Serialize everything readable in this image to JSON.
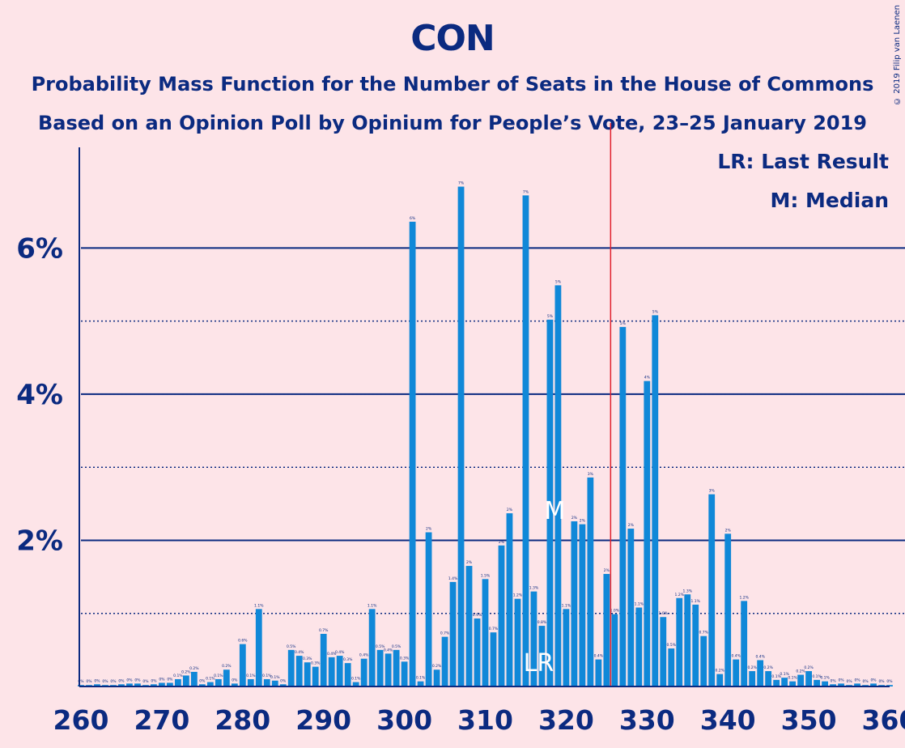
{
  "chart_data": {
    "type": "bar",
    "title": "CON",
    "subtitle": "Probability Mass Function for the Number of Seats in the House of Commons",
    "subtitle2": "Based on an Opinion Poll by Opinium for People’s Vote, 23–25 January 2019",
    "copyright": "© 2019 Filip van Laenen",
    "xlabel": "",
    "ylabel": "",
    "xlim": [
      260,
      360
    ],
    "ylim": [
      0,
      7.4
    ],
    "x_ticks": [
      "260",
      "270",
      "280",
      "290",
      "300",
      "310",
      "320",
      "330",
      "340",
      "350",
      "360"
    ],
    "y_ticks": [
      {
        "value": 2,
        "label": "2%"
      },
      {
        "value": 4,
        "label": "4%"
      },
      {
        "value": 6,
        "label": "6%"
      }
    ],
    "majority_line": 326,
    "last_result": {
      "seat": 317,
      "label": "LR"
    },
    "median": {
      "seat": 319,
      "label": "M"
    },
    "legend": [
      "LR: Last Result",
      "M: Median"
    ],
    "colors": {
      "bar": "#1088d8",
      "axis": "#0b2a80",
      "majority": "#e0202c",
      "background": "#fde4e8"
    },
    "seats": [
      260,
      261,
      262,
      263,
      264,
      265,
      266,
      267,
      268,
      269,
      270,
      271,
      272,
      273,
      274,
      275,
      276,
      277,
      278,
      279,
      280,
      281,
      282,
      283,
      284,
      285,
      286,
      287,
      288,
      289,
      290,
      291,
      292,
      293,
      294,
      295,
      296,
      297,
      298,
      299,
      300,
      301,
      302,
      303,
      304,
      305,
      306,
      307,
      308,
      309,
      310,
      311,
      312,
      313,
      314,
      315,
      316,
      317,
      318,
      319,
      320,
      321,
      322,
      323,
      324,
      325,
      326,
      327,
      328,
      329,
      330,
      331,
      332,
      333,
      334,
      335,
      336,
      337,
      338,
      339,
      340,
      341,
      342,
      343,
      344,
      345,
      346,
      347,
      348,
      349,
      350,
      351,
      352,
      353,
      354,
      355,
      356,
      357,
      358,
      359,
      360
    ],
    "values": [
      0.02,
      0.02,
      0.03,
      0.02,
      0.02,
      0.03,
      0.04,
      0.04,
      0.02,
      0.03,
      0.05,
      0.05,
      0.1,
      0.15,
      0.2,
      0.03,
      0.06,
      0.1,
      0.23,
      0.04,
      0.58,
      0.1,
      1.06,
      0.1,
      0.08,
      0.03,
      0.5,
      0.42,
      0.33,
      0.27,
      0.72,
      0.4,
      0.42,
      0.32,
      0.06,
      0.38,
      1.06,
      0.5,
      0.45,
      0.5,
      0.34,
      6.36,
      0.07,
      2.11,
      0.23,
      0.68,
      1.43,
      6.84,
      1.65,
      0.93,
      1.47,
      0.74,
      1.93,
      2.37,
      1.2,
      6.72,
      1.3,
      0.83,
      5.02,
      5.49,
      1.06,
      2.26,
      2.22,
      2.86,
      0.37,
      1.54,
      0.99,
      4.92,
      2.16,
      1.08,
      4.18,
      5.08,
      0.95,
      0.52,
      1.21,
      1.26,
      1.12,
      0.69,
      2.63,
      0.17,
      2.09,
      0.37,
      1.17,
      0.21,
      0.36,
      0.21,
      0.09,
      0.12,
      0.07,
      0.16,
      0.21,
      0.09,
      0.07,
      0.03,
      0.04,
      0.02,
      0.04,
      0.02,
      0.04,
      0.02,
      0.02
    ],
    "labels": [
      "0%",
      "0%",
      "0%",
      "0%",
      "0%",
      "0%",
      "0%",
      "0%",
      "0%",
      "0%",
      "0%",
      "0%",
      "0.1%",
      "0.2%",
      "0.2%",
      "0%",
      "0.1%",
      "0.1%",
      "0.2%",
      "0%",
      "0.6%",
      "0.1%",
      "1.1%",
      "0.1%",
      "0.1%",
      "0%",
      "0.5%",
      "0.4%",
      "0.3%",
      "0.3%",
      "0.7%",
      "0.4%",
      "0.4%",
      "0.3%",
      "0.1%",
      "0.4%",
      "1.1%",
      "0.5%",
      "0.4%",
      "0.5%",
      "0.3%",
      "6%",
      "0.1%",
      "2%",
      "0.2%",
      "0.7%",
      "1.4%",
      "7%",
      "2%",
      "0.9%",
      "1.5%",
      "0.7%",
      "2%",
      "2%",
      "1.2%",
      "7%",
      "1.3%",
      "0.8%",
      "5%",
      "5%",
      "1.1%",
      "2%",
      "2%",
      "3%",
      "0.4%",
      "2%",
      "1.0%",
      "5%",
      "2%",
      "1.1%",
      "4%",
      "5%",
      "1.0%",
      "0.5%",
      "1.2%",
      "1.3%",
      "1.1%",
      "0.7%",
      "3%",
      "0.2%",
      "2%",
      "0.4%",
      "1.2%",
      "0.2%",
      "0.4%",
      "0.2%",
      "0.1%",
      "0.1%",
      "0.1%",
      "0.2%",
      "0.2%",
      "0.1%",
      "0.1%",
      "0%",
      "0%",
      "0%",
      "0%",
      "0%",
      "0%",
      "0%",
      "0%"
    ]
  }
}
